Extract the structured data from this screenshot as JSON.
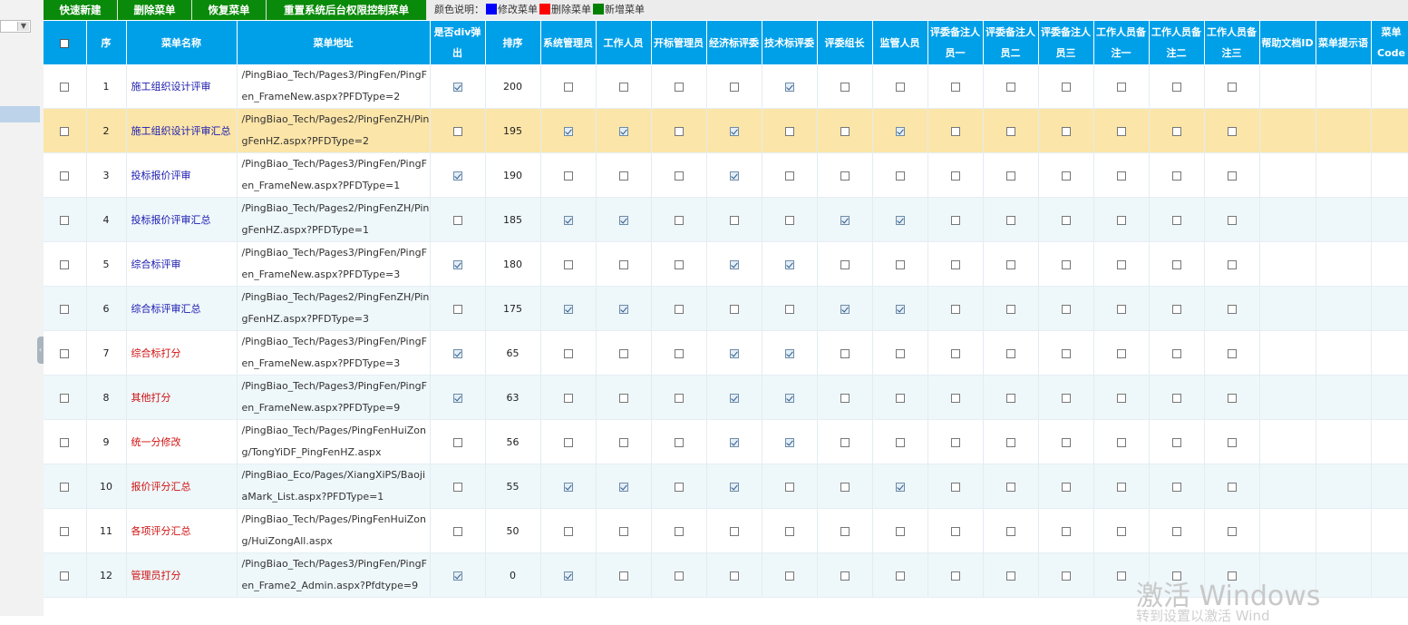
{
  "toolbar": {
    "buttons": [
      "快速新建",
      "删除菜单",
      "恢复菜单",
      "重置系统后台权限控制菜单"
    ],
    "legend_label": "颜色说明：",
    "legend": [
      {
        "label": "修改菜单",
        "color": "#0000ff"
      },
      {
        "label": "删除菜单",
        "color": "#ff0000"
      },
      {
        "label": "新增菜单",
        "color": "#008000"
      }
    ]
  },
  "colors": {
    "header": "#00a0e9",
    "toolbar_button": "#0a8a0a",
    "selected_row": "#fce5a8"
  },
  "table": {
    "headers": [
      "",
      "序",
      "菜单名称",
      "菜单地址",
      "是否div弹出",
      "排序",
      "系统管理员",
      "工作人员",
      "开标管理员",
      "经济标评委",
      "技术标评委",
      "评委组长",
      "监管人员",
      "评委备注人员一",
      "评委备注人员二",
      "评委备注人员三",
      "工作人员备注一",
      "工作人员备注二",
      "工作人员备注三",
      "帮助文档ID",
      "菜单提示语",
      "菜单Code"
    ],
    "rows": [
      {
        "no": "1",
        "name": "施工组织设计评审",
        "name_color": "blue",
        "addr": "/PingBiao_Tech/Pages3/PingFen/PingFen_FrameNew.aspx?PFDType=2",
        "div": true,
        "sort": "200",
        "flags": [
          false,
          false,
          false,
          false,
          true,
          false,
          false,
          false,
          false,
          false,
          false,
          false,
          false
        ]
      },
      {
        "no": "2",
        "name": "施工组织设计评审汇总",
        "name_color": "blue",
        "addr": "/PingBiao_Tech/Pages2/PingFenZH/PingFenHZ.aspx?PFDType=2",
        "div": false,
        "sort": "195",
        "flags": [
          true,
          true,
          false,
          true,
          false,
          false,
          true,
          false,
          false,
          false,
          false,
          false,
          false
        ],
        "selected": true
      },
      {
        "no": "3",
        "name": "投标报价评审",
        "name_color": "blue",
        "addr": "/PingBiao_Tech/Pages3/PingFen/PingFen_FrameNew.aspx?PFDType=1",
        "div": true,
        "sort": "190",
        "flags": [
          false,
          false,
          false,
          true,
          false,
          false,
          false,
          false,
          false,
          false,
          false,
          false,
          false
        ]
      },
      {
        "no": "4",
        "name": "投标报价评审汇总",
        "name_color": "blue",
        "addr": "/PingBiao_Tech/Pages2/PingFenZH/PingFenHZ.aspx?PFDType=1",
        "div": false,
        "sort": "185",
        "flags": [
          true,
          true,
          false,
          false,
          false,
          true,
          true,
          false,
          false,
          false,
          false,
          false,
          false
        ]
      },
      {
        "no": "5",
        "name": "综合标评审",
        "name_color": "blue",
        "addr": "/PingBiao_Tech/Pages3/PingFen/PingFen_FrameNew.aspx?PFDType=3",
        "div": true,
        "sort": "180",
        "flags": [
          false,
          false,
          false,
          true,
          true,
          false,
          false,
          false,
          false,
          false,
          false,
          false,
          false
        ]
      },
      {
        "no": "6",
        "name": "综合标评审汇总",
        "name_color": "blue",
        "addr": "/PingBiao_Tech/Pages2/PingFenZH/PingFenHZ.aspx?PFDType=3",
        "div": false,
        "sort": "175",
        "flags": [
          true,
          true,
          false,
          false,
          false,
          true,
          true,
          false,
          false,
          false,
          false,
          false,
          false
        ]
      },
      {
        "no": "7",
        "name": "综合标打分",
        "name_color": "red",
        "addr": "/PingBiao_Tech/Pages3/PingFen/PingFen_FrameNew.aspx?PFDType=3",
        "div": true,
        "sort": "65",
        "flags": [
          false,
          false,
          false,
          true,
          true,
          false,
          false,
          false,
          false,
          false,
          false,
          false,
          false
        ]
      },
      {
        "no": "8",
        "name": "其他打分",
        "name_color": "red",
        "addr": "/PingBiao_Tech/Pages3/PingFen/PingFen_FrameNew.aspx?PFDType=9",
        "div": true,
        "sort": "63",
        "flags": [
          false,
          false,
          false,
          true,
          true,
          false,
          false,
          false,
          false,
          false,
          false,
          false,
          false
        ]
      },
      {
        "no": "9",
        "name": "统一分修改",
        "name_color": "red",
        "addr": "/PingBiao_Tech/Pages/PingFenHuiZong/TongYiDF_PingFenHZ.aspx",
        "div": false,
        "sort": "56",
        "flags": [
          false,
          false,
          false,
          true,
          true,
          false,
          false,
          false,
          false,
          false,
          false,
          false,
          false
        ]
      },
      {
        "no": "10",
        "name": "报价评分汇总",
        "name_color": "red",
        "addr": "/PingBiao_Eco/Pages/XiangXiPS/BaojiaMark_List.aspx?PFDType=1",
        "div": false,
        "sort": "55",
        "flags": [
          true,
          true,
          false,
          true,
          false,
          false,
          true,
          false,
          false,
          false,
          false,
          false,
          false
        ]
      },
      {
        "no": "11",
        "name": "各项评分汇总",
        "name_color": "red",
        "addr": "/PingBiao_Tech/Pages/PingFenHuiZong/HuiZongAll.aspx",
        "div": false,
        "sort": "50",
        "flags": [
          false,
          false,
          false,
          false,
          false,
          false,
          false,
          false,
          false,
          false,
          false,
          false,
          false
        ]
      },
      {
        "no": "12",
        "name": "管理员打分",
        "name_color": "red",
        "addr": "/PingBiao_Tech/Pages3/PingFen/PingFen_Frame2_Admin.aspx?Pfdtype=9",
        "div": true,
        "sort": "0",
        "flags": [
          true,
          false,
          false,
          false,
          false,
          false,
          false,
          false,
          false,
          false,
          false,
          false,
          false
        ]
      }
    ]
  },
  "watermark": {
    "line1": "激活 Windows",
    "line2": "转到设置以激活 Wind"
  }
}
